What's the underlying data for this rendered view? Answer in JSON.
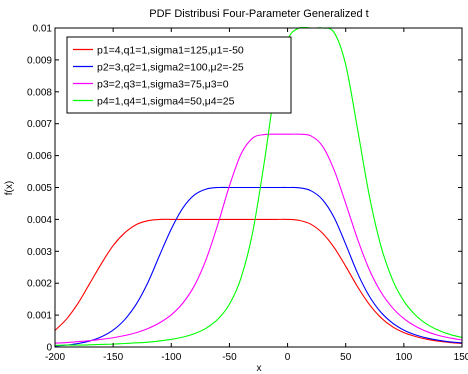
{
  "chart_data": {
    "type": "line",
    "title": "PDF Distribusi Four-Parameter Generalized t",
    "xlabel": "x",
    "ylabel": "f(x)",
    "xlim": [
      -200,
      150
    ],
    "ylim": [
      0,
      0.01
    ],
    "xticks": [
      "-200",
      "-150",
      "-100",
      "-50",
      "0",
      "50",
      "100",
      "150"
    ],
    "yticks": [
      "0",
      "0.001",
      "0.002",
      "0.003",
      "0.004",
      "0.005",
      "0.006",
      "0.007",
      "0.008",
      "0.009",
      "0.01"
    ],
    "grid": false,
    "legend_position": "top-left",
    "series": [
      {
        "name": "p1=4,q1=1,sigma1=125,μ1=-50",
        "color": "#ff0000",
        "x": [
          -200,
          -190,
          -180,
          -170,
          -160,
          -150,
          -140,
          -130,
          -120,
          -110,
          -100,
          -90,
          -80,
          -70,
          -60,
          -50,
          -40,
          -30,
          -20,
          -10,
          0,
          10,
          20,
          30,
          40,
          50,
          60,
          70,
          80,
          90,
          100,
          110,
          120,
          130,
          140,
          150
        ],
        "y": [
          0.00052,
          0.00088,
          0.00138,
          0.002,
          0.00262,
          0.00318,
          0.00358,
          0.00384,
          0.00396,
          0.004,
          0.004,
          0.004,
          0.004,
          0.004,
          0.004,
          0.004,
          0.004,
          0.004,
          0.004,
          0.004,
          0.004,
          0.00397,
          0.00385,
          0.00357,
          0.00312,
          0.00253,
          0.0019,
          0.00135,
          0.00093,
          0.00064,
          0.00045,
          0.00033,
          0.00024,
          0.00018,
          0.00014,
          0.00011
        ]
      },
      {
        "name": "p2=3,q2=1,sigma2=100,μ2=-25",
        "color": "#0000ff",
        "x": [
          -200,
          -190,
          -180,
          -170,
          -160,
          -150,
          -140,
          -130,
          -120,
          -110,
          -100,
          -90,
          -80,
          -70,
          -60,
          -50,
          -40,
          -30,
          -20,
          -10,
          0,
          10,
          20,
          30,
          40,
          50,
          60,
          70,
          80,
          90,
          100,
          110,
          120,
          130,
          140,
          150
        ],
        "y": [
          3e-05,
          6e-05,
          0.00011,
          0.00019,
          0.00032,
          0.00053,
          0.00086,
          0.00135,
          0.00203,
          0.00288,
          0.0037,
          0.00436,
          0.00477,
          0.00495,
          0.005,
          0.005,
          0.005,
          0.005,
          0.005,
          0.005,
          0.005,
          0.00499,
          0.0049,
          0.00462,
          0.00406,
          0.00322,
          0.00233,
          0.00161,
          0.0011,
          0.00076,
          0.00053,
          0.00038,
          0.00028,
          0.00021,
          0.00016,
          0.00013
        ]
      },
      {
        "name": "p3=2,q3=1,sigma3=75,μ3=0",
        "color": "#ff00ff",
        "x": [
          -200,
          -190,
          -180,
          -170,
          -160,
          -150,
          -140,
          -130,
          -120,
          -110,
          -100,
          -90,
          -80,
          -70,
          -60,
          -50,
          -40,
          -30,
          -20,
          -10,
          0,
          10,
          20,
          30,
          40,
          50,
          60,
          70,
          80,
          90,
          100,
          110,
          120,
          130,
          140,
          150
        ],
        "y": [
          0.00012,
          0.00014,
          0.00017,
          0.0002,
          0.00024,
          0.00029,
          0.00036,
          0.00045,
          0.00058,
          0.00076,
          0.00101,
          0.00138,
          0.00193,
          0.00275,
          0.00384,
          0.00505,
          0.00605,
          0.00655,
          0.00666,
          0.00667,
          0.00667,
          0.00667,
          0.00662,
          0.0063,
          0.00555,
          0.0045,
          0.0034,
          0.00245,
          0.00174,
          0.00124,
          0.00089,
          0.00065,
          0.00048,
          0.00036,
          0.00028,
          0.00022
        ]
      },
      {
        "name": "p4=1,q4=1,sigma4=50,μ4=25",
        "color": "#00ff00",
        "x": [
          -200,
          -190,
          -180,
          -170,
          -160,
          -150,
          -140,
          -130,
          -120,
          -110,
          -100,
          -90,
          -80,
          -70,
          -60,
          -50,
          -40,
          -30,
          -20,
          -10,
          0,
          10,
          20,
          25,
          30,
          40,
          50,
          60,
          70,
          80,
          90,
          100,
          110,
          120,
          130,
          140,
          150
        ],
        "y": [
          5e-05,
          6e-05,
          6e-05,
          7e-05,
          8e-05,
          9e-05,
          0.00011,
          0.00013,
          0.00015,
          0.00019,
          0.00024,
          0.00031,
          0.00042,
          0.00059,
          0.00087,
          0.00134,
          0.00217,
          0.0036,
          0.0058,
          0.00826,
          0.00963,
          0.01,
          0.01,
          0.01,
          0.01,
          0.00986,
          0.00885,
          0.00687,
          0.0048,
          0.0032,
          0.00213,
          0.00144,
          0.001,
          0.00071,
          0.00052,
          0.00039,
          0.0003
        ]
      }
    ]
  }
}
